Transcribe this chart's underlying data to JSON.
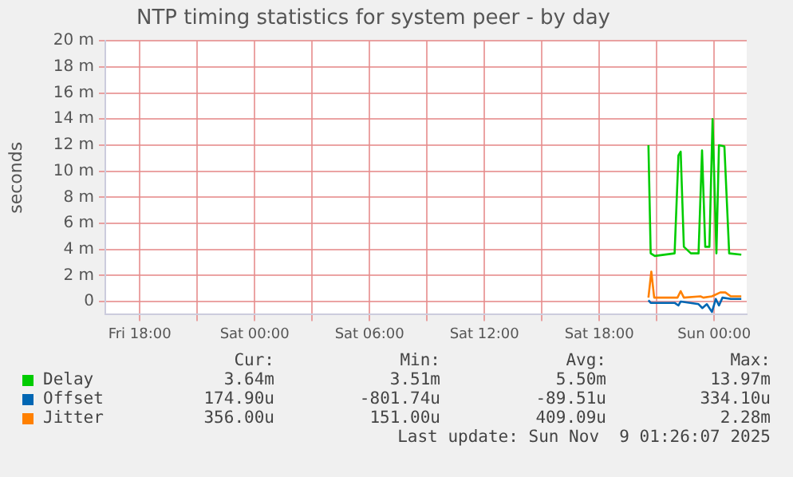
{
  "chart_data": {
    "type": "line",
    "title": "NTP timing statistics for system peer - by day",
    "ylabel": "seconds",
    "xlim": [
      "2025-11-07T16:12",
      "2025-11-09T01:42"
    ],
    "xticks": [
      {
        "value": "2025-11-07T18:00",
        "label": "Fri 18:00"
      },
      {
        "value": "2025-11-07T21:00",
        "label": null
      },
      {
        "value": "2025-11-08T00:00",
        "label": "Sat 00:00"
      },
      {
        "value": "2025-11-08T03:00",
        "label": null
      },
      {
        "value": "2025-11-08T06:00",
        "label": "Sat 06:00"
      },
      {
        "value": "2025-11-08T09:00",
        "label": null
      },
      {
        "value": "2025-11-08T12:00",
        "label": "Sat 12:00"
      },
      {
        "value": "2025-11-08T15:00",
        "label": null
      },
      {
        "value": "2025-11-08T18:00",
        "label": "Sat 18:00"
      },
      {
        "value": "2025-11-08T21:00",
        "label": null
      },
      {
        "value": "2025-11-09T00:00",
        "label": "Sun 00:00"
      }
    ],
    "ylim": [
      -1,
      20
    ],
    "yticks": [
      0,
      {
        "value": 2,
        "label": "2 m"
      },
      {
        "value": 4,
        "label": "4 m"
      },
      {
        "value": 6,
        "label": "6 m"
      },
      {
        "value": 8,
        "label": "8 m"
      },
      {
        "value": 10,
        "label": "10 m"
      },
      {
        "value": 12,
        "label": "12 m"
      },
      {
        "value": 14,
        "label": "14 m"
      },
      {
        "value": 16,
        "label": "16 m"
      },
      {
        "value": 18,
        "label": "18 m"
      },
      {
        "value": 20,
        "label": "20 m"
      }
    ],
    "grid": true,
    "legend": "bottom",
    "marker": "none",
    "line_style": "solid",
    "series": [
      {
        "name": "Delay",
        "color": "#00cc00",
        "x": [
          "2025-11-08T20:34",
          "2025-11-08T20:41",
          "2025-11-08T20:54",
          "2025-11-08T21:56",
          "2025-11-08T22:08",
          "2025-11-08T22:15",
          "2025-11-08T22:25",
          "2025-11-08T22:47",
          "2025-11-08T23:11",
          "2025-11-08T23:22",
          "2025-11-08T23:32",
          "2025-11-08T23:45",
          "2025-11-08T23:55",
          "2025-11-09T00:07",
          "2025-11-09T00:15",
          "2025-11-09T00:32",
          "2025-11-09T00:47",
          "2025-11-09T01:25"
        ],
        "values": [
          12.0,
          3.7,
          3.5,
          3.7,
          11.2,
          11.5,
          4.2,
          3.7,
          3.7,
          11.6,
          4.2,
          4.2,
          14.0,
          3.7,
          12.0,
          11.9,
          3.7,
          3.6
        ]
      },
      {
        "name": "Offset",
        "color": "#0066b3",
        "x": [
          "2025-11-08T20:34",
          "2025-11-08T20:41",
          "2025-11-08T21:56",
          "2025-11-08T22:08",
          "2025-11-08T22:15",
          "2025-11-08T23:11",
          "2025-11-08T23:23",
          "2025-11-08T23:37",
          "2025-11-08T23:53",
          "2025-11-09T00:05",
          "2025-11-09T00:15",
          "2025-11-09T00:26",
          "2025-11-09T00:52",
          "2025-11-09T01:25"
        ],
        "values": [
          0.1,
          -0.1,
          -0.1,
          -0.3,
          0.0,
          -0.2,
          -0.5,
          -0.2,
          -0.8,
          0.2,
          -0.3,
          0.3,
          0.2,
          0.2
        ]
      },
      {
        "name": "Jitter",
        "color": "#ff8000",
        "x": [
          "2025-11-08T20:34",
          "2025-11-08T20:43",
          "2025-11-08T20:52",
          "2025-11-08T22:05",
          "2025-11-08T22:15",
          "2025-11-08T22:25",
          "2025-11-08T23:17",
          "2025-11-08T23:26",
          "2025-11-08T23:53",
          "2025-11-09T00:19",
          "2025-11-09T00:35",
          "2025-11-09T00:52",
          "2025-11-09T01:25"
        ],
        "values": [
          0.3,
          2.3,
          0.3,
          0.3,
          0.8,
          0.3,
          0.4,
          0.3,
          0.4,
          0.7,
          0.7,
          0.4,
          0.4
        ]
      }
    ],
    "annotations": [
      "Cur:",
      "Min:",
      "Avg:",
      "Max:",
      "3.64m",
      "3.51m",
      "5.50m",
      "13.97m",
      "174.90u",
      "-801.74u",
      "-89.51u",
      "334.10u",
      "356.00u",
      "151.00u",
      "409.09u",
      "2.28m",
      "Last update: Sun Nov  9 01:26:07 2025"
    ]
  }
}
